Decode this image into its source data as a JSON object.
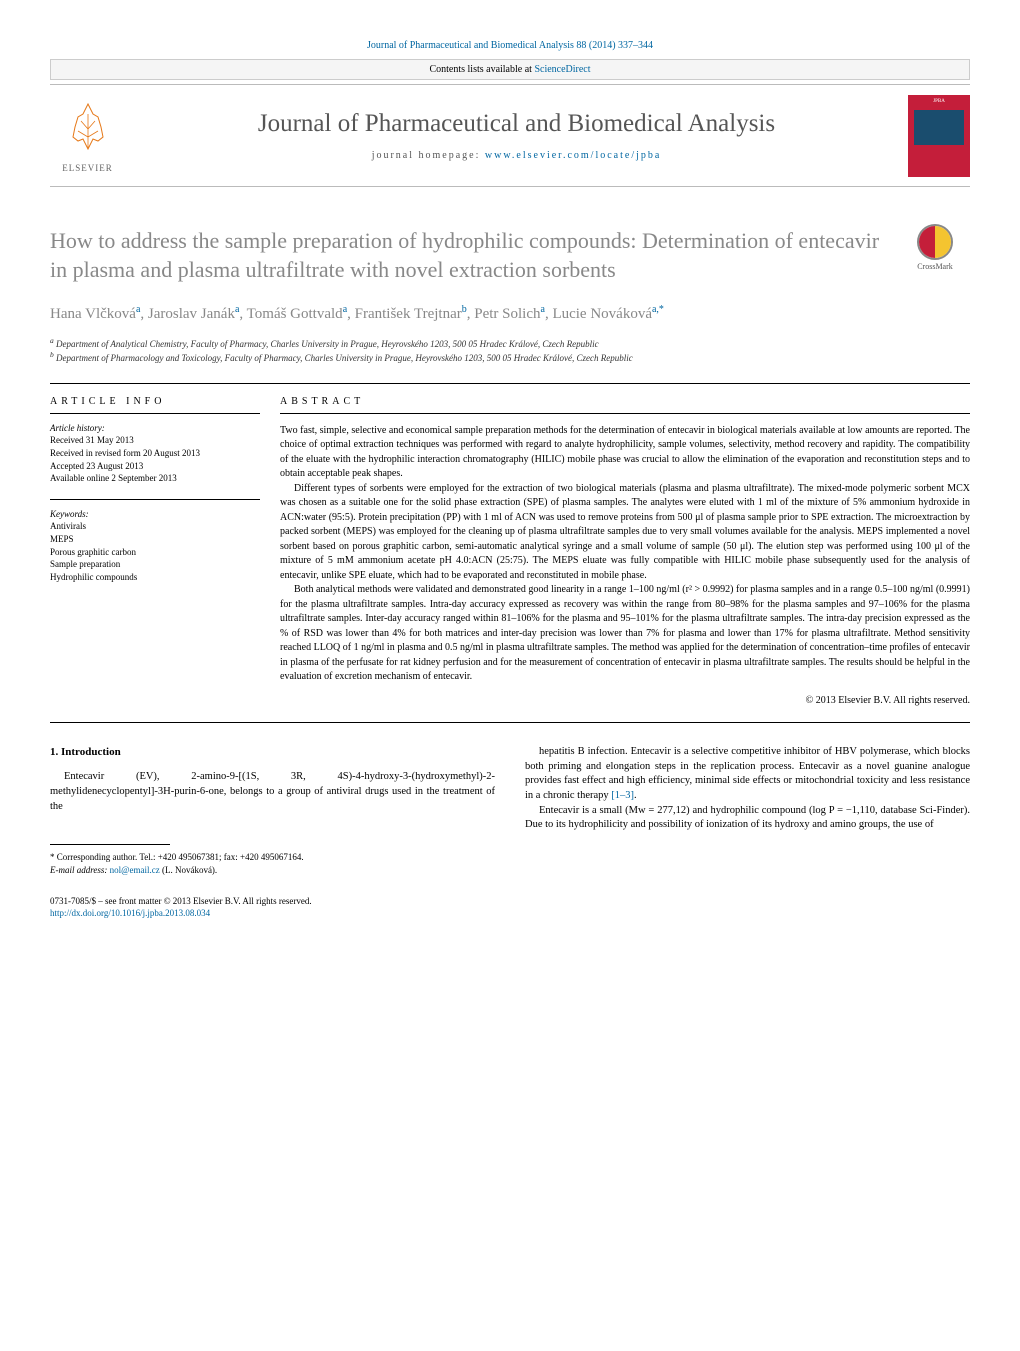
{
  "top_citation": "Journal of Pharmaceutical and Biomedical Analysis 88 (2014) 337–344",
  "contents_line_prefix": "Contents lists available at ",
  "contents_line_link": "ScienceDirect",
  "journal_title": "Journal of Pharmaceutical and Biomedical Analysis",
  "journal_home_prefix": "journal homepage: ",
  "journal_home_link": "www.elsevier.com/locate/jpba",
  "elsevier_label": "ELSEVIER",
  "cover_label": "JPBA",
  "crossmark_label": "CrossMark",
  "article_title": "How to address the sample preparation of hydrophilic compounds: Determination of entecavir in plasma and plasma ultrafiltrate with novel extraction sorbents",
  "authors_html": [
    {
      "name": "Hana Vlčková",
      "sup": "a"
    },
    {
      "name": "Jaroslav Janák",
      "sup": "a"
    },
    {
      "name": "Tomáš Gottvald",
      "sup": "a"
    },
    {
      "name": "František Trejtnar",
      "sup": "b"
    },
    {
      "name": "Petr Solich",
      "sup": "a"
    },
    {
      "name": "Lucie Nováková",
      "sup": "a,*"
    }
  ],
  "affiliations": [
    {
      "sup": "a",
      "text": "Department of Analytical Chemistry, Faculty of Pharmacy, Charles University in Prague, Heyrovského 1203, 500 05 Hradec Králové, Czech Republic"
    },
    {
      "sup": "b",
      "text": "Department of Pharmacology and Toxicology, Faculty of Pharmacy, Charles University in Prague, Heyrovského 1203, 500 05 Hradec Králové, Czech Republic"
    }
  ],
  "article_info_head": "ARTICLE INFO",
  "history_label": "Article history:",
  "history_lines": [
    "Received 31 May 2013",
    "Received in revised form 20 August 2013",
    "Accepted 23 August 2013",
    "Available online 2 September 2013"
  ],
  "keywords_label": "Keywords:",
  "keywords": [
    "Antivirals",
    "MEPS",
    "Porous graphitic carbon",
    "Sample preparation",
    "Hydrophilic compounds"
  ],
  "abstract_head": "ABSTRACT",
  "abstract_paragraphs": [
    "Two fast, simple, selective and economical sample preparation methods for the determination of entecavir in biological materials available at low amounts are reported. The choice of optimal extraction techniques was performed with regard to analyte hydrophilicity, sample volumes, selectivity, method recovery and rapidity. The compatibility of the eluate with the hydrophilic interaction chromatography (HILIC) mobile phase was crucial to allow the elimination of the evaporation and reconstitution steps and to obtain acceptable peak shapes.",
    "Different types of sorbents were employed for the extraction of two biological materials (plasma and plasma ultrafiltrate). The mixed-mode polymeric sorbent MCX was chosen as a suitable one for the solid phase extraction (SPE) of plasma samples. The analytes were eluted with 1 ml of the mixture of 5% ammonium hydroxide in ACN:water (95:5). Protein precipitation (PP) with 1 ml of ACN was used to remove proteins from 500 μl of plasma sample prior to SPE extraction. The microextraction by packed sorbent (MEPS) was employed for the cleaning up of plasma ultrafiltrate samples due to very small volumes available for the analysis. MEPS implemented a novel sorbent based on porous graphitic carbon, semi-automatic analytical syringe and a small volume of sample (50 μl). The elution step was performed using 100 μl of the mixture of 5 mM ammonium acetate pH 4.0:ACN (25:75). The MEPS eluate was fully compatible with HILIC mobile phase subsequently used for the analysis of entecavir, unlike SPE eluate, which had to be evaporated and reconstituted in mobile phase.",
    "Both analytical methods were validated and demonstrated good linearity in a range 1–100 ng/ml (r² > 0.9992) for plasma samples and in a range 0.5–100 ng/ml (0.9991) for the plasma ultrafiltrate samples. Intra-day accuracy expressed as recovery was within the range from 80–98% for the plasma samples and 97–106% for the plasma ultrafiltrate samples. Inter-day accuracy ranged within 81–106% for the plasma and 95–101% for the plasma ultrafiltrate samples. The intra-day precision expressed as the % of RSD was lower than 4% for both matrices and inter-day precision was lower than 7% for plasma and lower than 17% for plasma ultrafiltrate. Method sensitivity reached LLOQ of 1 ng/ml in plasma and 0.5 ng/ml in plasma ultrafiltrate samples. The method was applied for the determination of concentration–time profiles of entecavir in plasma of the perfusate for rat kidney perfusion and for the measurement of concentration of entecavir in plasma ultrafiltrate samples. The results should be helpful in the evaluation of excretion mechanism of entecavir."
  ],
  "copyright": "© 2013 Elsevier B.V. All rights reserved.",
  "intro_head": "1. Introduction",
  "intro_left_paragraphs": [
    "Entecavir (EV), 2-amino-9-[(1S, 3R, 4S)-4-hydroxy-3-(hydroxymethyl)-2-methylidenecyclopentyl]-3H-purin-6-one, belongs to a group of antiviral drugs used in the treatment of the"
  ],
  "intro_right_paragraphs": [
    "hepatitis B infection. Entecavir is a selective competitive inhibitor of HBV polymerase, which blocks both priming and elongation steps in the replication process. Entecavir as a novel guanine analogue provides fast effect and high efficiency, minimal side effects or mitochondrial toxicity and less resistance in a chronic therapy [1–3].",
    "Entecavir is a small (Mᴡ = 277,12) and hydrophilic compound (log P = −1,110, database Sci-Finder). Due to its hydrophilicity and possibility of ionization of its hydroxy and amino groups, the use of"
  ],
  "ref_link": "[1–3]",
  "footnote_corr": "* Corresponding author. Tel.: +420 495067381; fax: +420 495067164.",
  "footnote_email_label": "E-mail address: ",
  "footnote_email": "nol@email.cz",
  "footnote_email_name": " (L. Nováková).",
  "footer_line1": "0731-7085/$ – see front matter © 2013 Elsevier B.V. All rights reserved.",
  "footer_doi": "http://dx.doi.org/10.1016/j.jpba.2013.08.034",
  "colors": {
    "link": "#0066a1",
    "cover_bg": "#c41e3a",
    "elsevier_orange": "#e67817",
    "heading_gray": "#888888"
  }
}
